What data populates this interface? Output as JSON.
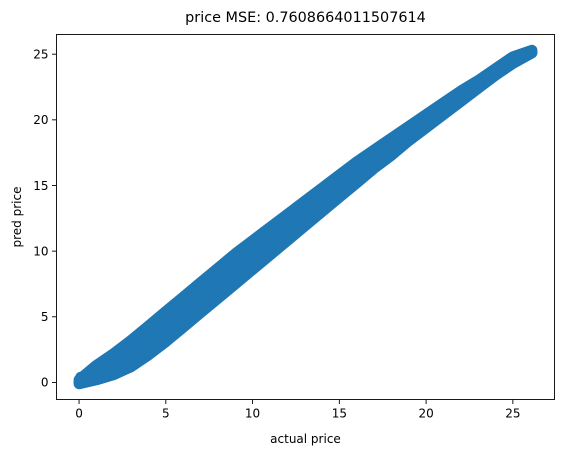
{
  "chart_data": {
    "type": "scatter",
    "title": "price MSE: 0.7608664011507614",
    "xlabel": "actual price",
    "ylabel": "pred price",
    "xlim": [
      -1.3,
      27.4
    ],
    "ylim": [
      -1.3,
      26.5
    ],
    "x_ticks": [
      0,
      5,
      10,
      15,
      20,
      25
    ],
    "y_ticks": [
      0,
      5,
      10,
      15,
      20,
      25
    ],
    "grid": false,
    "legend": "none",
    "color": "#1f77b4",
    "series": [
      {
        "points": [
          [
            0,
            0
          ],
          [
            0.2,
            0.05
          ],
          [
            0.5,
            0.1
          ],
          [
            0.8,
            0.2
          ],
          [
            1.0,
            0.3
          ],
          [
            1.5,
            0.5
          ],
          [
            2.0,
            0.8
          ],
          [
            2.5,
            1.1
          ],
          [
            3.0,
            1.5
          ],
          [
            3.5,
            1.9
          ],
          [
            4.0,
            2.4
          ],
          [
            4.5,
            2.9
          ],
          [
            5.0,
            3.4
          ],
          [
            5.5,
            3.9
          ],
          [
            6.0,
            4.5
          ],
          [
            6.5,
            5.0
          ],
          [
            7.0,
            5.6
          ],
          [
            7.5,
            6.1
          ],
          [
            8.0,
            6.7
          ],
          [
            8.5,
            7.2
          ],
          [
            9.0,
            7.8
          ],
          [
            9.5,
            8.3
          ],
          [
            10.0,
            8.9
          ],
          [
            10.5,
            9.4
          ],
          [
            11.0,
            10.0
          ],
          [
            11.5,
            10.5
          ],
          [
            12.0,
            11.1
          ],
          [
            12.5,
            11.6
          ],
          [
            13.0,
            12.2
          ],
          [
            13.5,
            12.7
          ],
          [
            14.0,
            13.3
          ],
          [
            14.5,
            13.8
          ],
          [
            15.0,
            14.4
          ],
          [
            15.5,
            14.9
          ],
          [
            16.0,
            15.5
          ],
          [
            16.5,
            16.0
          ],
          [
            17.0,
            16.5
          ],
          [
            17.5,
            17.0
          ],
          [
            18.0,
            17.5
          ],
          [
            18.5,
            18.0
          ],
          [
            19.0,
            18.5
          ],
          [
            19.5,
            19.0
          ],
          [
            20.0,
            19.5
          ],
          [
            20.5,
            20.0
          ],
          [
            21.0,
            20.5
          ],
          [
            21.5,
            21.0
          ],
          [
            22.0,
            21.5
          ],
          [
            22.5,
            22.0
          ],
          [
            23.0,
            22.5
          ],
          [
            23.5,
            23.0
          ],
          [
            24.0,
            23.5
          ],
          [
            24.5,
            24.0
          ],
          [
            25.0,
            24.4
          ],
          [
            25.5,
            24.8
          ],
          [
            26.1,
            25.2
          ],
          [
            0.1,
            0.4
          ],
          [
            0.4,
            0.6
          ],
          [
            0.8,
            0.9
          ],
          [
            1.0,
            1.2
          ],
          [
            1.5,
            1.6
          ],
          [
            2.0,
            2.1
          ],
          [
            2.5,
            2.6
          ],
          [
            3.0,
            3.1
          ],
          [
            3.5,
            3.7
          ],
          [
            4.0,
            4.2
          ],
          [
            4.5,
            4.8
          ],
          [
            5.0,
            5.3
          ],
          [
            5.5,
            5.9
          ],
          [
            6.0,
            6.4
          ],
          [
            6.5,
            7.0
          ],
          [
            7.0,
            7.5
          ],
          [
            7.5,
            8.0
          ],
          [
            8.0,
            8.6
          ],
          [
            8.5,
            9.1
          ],
          [
            9.0,
            9.6
          ],
          [
            9.5,
            10.2
          ],
          [
            10.0,
            10.7
          ],
          [
            10.5,
            11.2
          ],
          [
            11.0,
            11.7
          ],
          [
            11.5,
            12.2
          ],
          [
            12.0,
            12.7
          ],
          [
            12.5,
            13.2
          ],
          [
            13.0,
            13.7
          ],
          [
            13.5,
            14.2
          ],
          [
            14.0,
            14.7
          ],
          [
            14.5,
            15.2
          ],
          [
            15.0,
            15.7
          ],
          [
            15.5,
            16.2
          ],
          [
            16.0,
            16.7
          ],
          [
            16.5,
            17.1
          ],
          [
            17.0,
            17.6
          ],
          [
            17.5,
            18.1
          ],
          [
            18.0,
            18.5
          ],
          [
            18.5,
            19.0
          ],
          [
            19.0,
            19.4
          ],
          [
            19.5,
            19.9
          ],
          [
            20.0,
            20.3
          ],
          [
            20.5,
            20.8
          ],
          [
            21.0,
            21.2
          ],
          [
            21.5,
            21.7
          ],
          [
            22.0,
            22.1
          ],
          [
            22.5,
            22.5
          ],
          [
            23.0,
            22.9
          ],
          [
            23.5,
            23.3
          ],
          [
            24.0,
            23.8
          ],
          [
            24.5,
            24.2
          ],
          [
            25.0,
            24.7
          ],
          [
            25.5,
            25.0
          ],
          [
            26.0,
            25.1
          ]
        ],
        "band": [
          [
            0.0,
            -0.1,
            0.2
          ],
          [
            1.0,
            0.2,
            1.3
          ],
          [
            2.0,
            0.6,
            2.2
          ],
          [
            3.0,
            1.2,
            3.2
          ],
          [
            4.0,
            2.1,
            4.3
          ],
          [
            5.0,
            3.1,
            5.4
          ],
          [
            6.0,
            4.2,
            6.5
          ],
          [
            7.0,
            5.3,
            7.6
          ],
          [
            8.0,
            6.4,
            8.7
          ],
          [
            9.0,
            7.5,
            9.8
          ],
          [
            10.0,
            8.6,
            10.8
          ],
          [
            11.0,
            9.7,
            11.8
          ],
          [
            12.0,
            10.8,
            12.8
          ],
          [
            13.0,
            11.9,
            13.8
          ],
          [
            14.0,
            13.0,
            14.8
          ],
          [
            15.0,
            14.1,
            15.8
          ],
          [
            16.0,
            15.2,
            16.8
          ],
          [
            17.0,
            16.3,
            17.7
          ],
          [
            18.0,
            17.3,
            18.6
          ],
          [
            19.0,
            18.4,
            19.5
          ],
          [
            20.0,
            19.4,
            20.4
          ],
          [
            21.0,
            20.4,
            21.3
          ],
          [
            22.0,
            21.4,
            22.2
          ],
          [
            23.0,
            22.4,
            23.0
          ],
          [
            24.0,
            23.4,
            23.9
          ],
          [
            25.0,
            24.3,
            24.8
          ],
          [
            26.1,
            25.1,
            25.3
          ]
        ]
      }
    ]
  }
}
